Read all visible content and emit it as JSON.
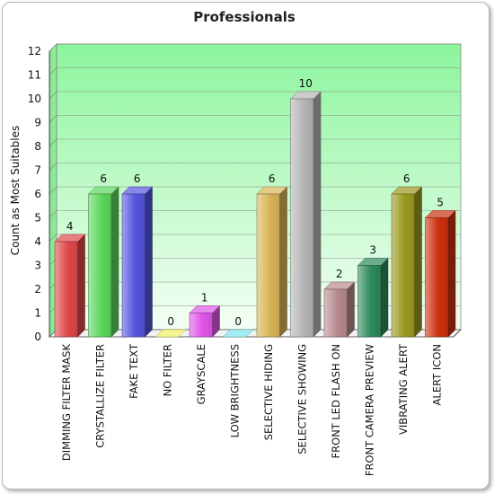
{
  "chart_data": {
    "type": "bar",
    "title": "Professionals",
    "ylabel": "Count as Most Suitables",
    "xlabel": "",
    "ylim": [
      0,
      12
    ],
    "yticks": [
      0,
      1,
      2,
      3,
      4,
      5,
      6,
      7,
      8,
      9,
      10,
      11,
      12
    ],
    "grid": true,
    "categories": [
      "DIMMING FILTER MASK",
      "CRYSTALLIZE FILTER",
      "FAKE TEXT",
      "NO FILTER",
      "GRAYSCALE",
      "LOW BRIGHTNESS",
      "SELECTIVE HIDING",
      "SELECTIVE SHOWING",
      "FRONT LED FLASH ON",
      "FRONT CAMERA PREVIEW",
      "VIBRATING ALERT",
      "ALERT ICON"
    ],
    "values": [
      4,
      6,
      6,
      0,
      1,
      0,
      6,
      10,
      2,
      3,
      6,
      5
    ],
    "colors": [
      "#e0484a",
      "#5cd65c",
      "#5555e0",
      "#f0f060",
      "#e055e8",
      "#7fe5f0",
      "#d9b558",
      "#b5b5b5",
      "#b88a90",
      "#2e8a5c",
      "#9a9a20",
      "#cc3010"
    ]
  }
}
